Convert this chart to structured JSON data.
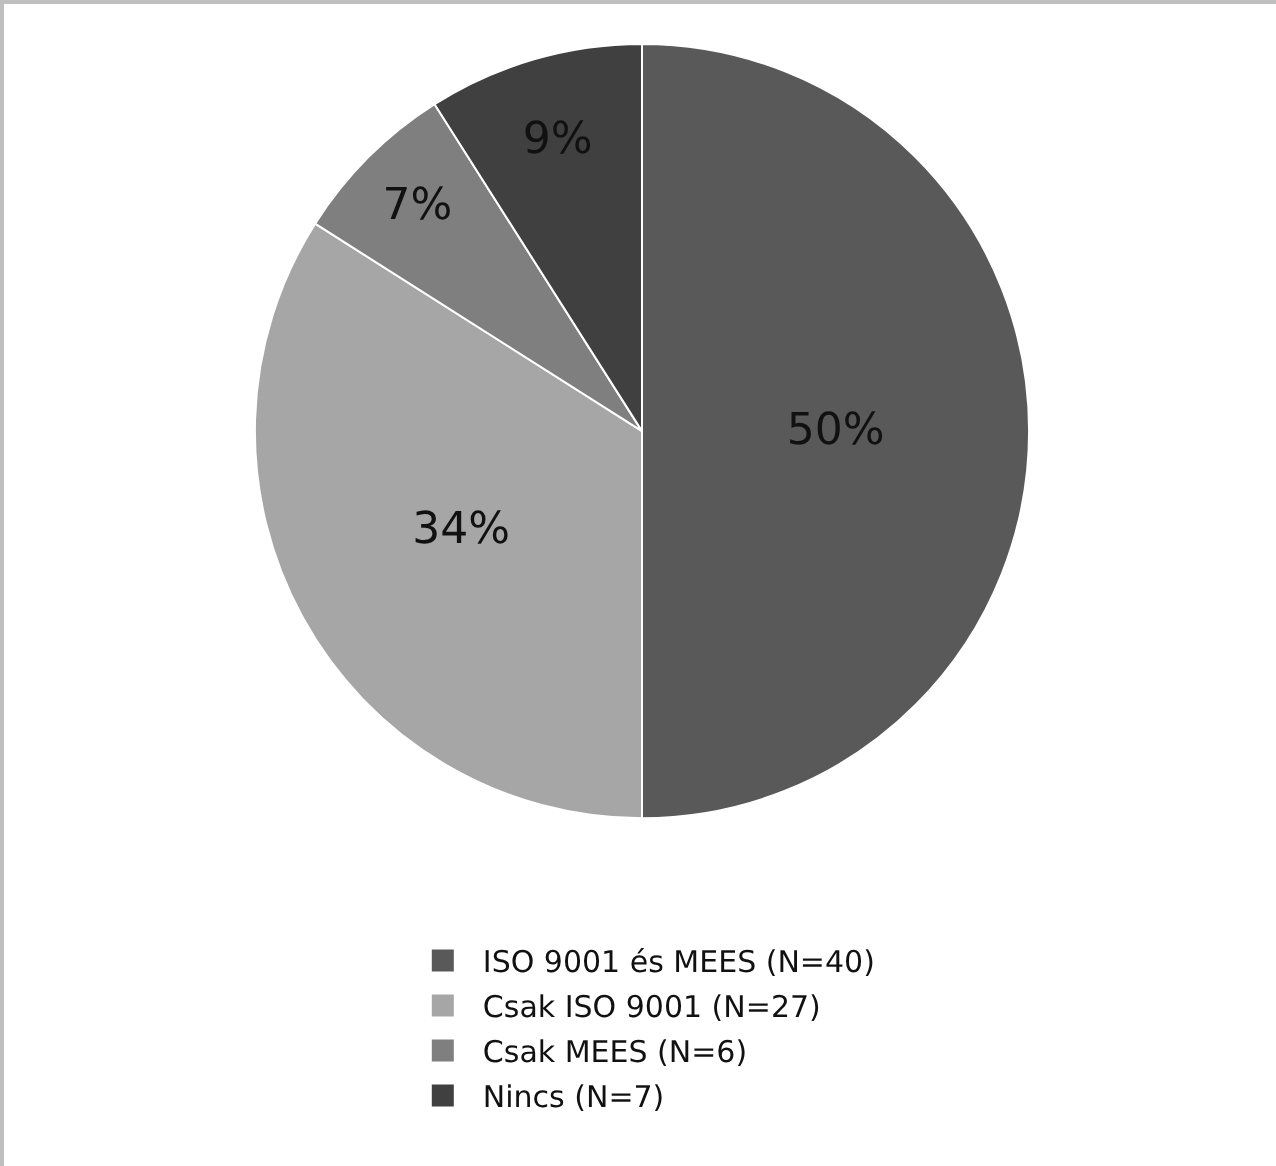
{
  "chart_data": {
    "type": "pie",
    "categories": [
      "ISO 9001 és MEES (N=40)",
      "Csak ISO 9001 (N=27)",
      "Csak MEES (N=6)",
      "Nincs (N=7)"
    ],
    "values": [
      50,
      34,
      7,
      9
    ],
    "colors": [
      "#595959",
      "#a6a6a6",
      "#7f7f7f",
      "#404040"
    ],
    "value_labels": [
      "50%",
      "34%",
      "7%",
      "9%"
    ],
    "legend": "bottom"
  }
}
